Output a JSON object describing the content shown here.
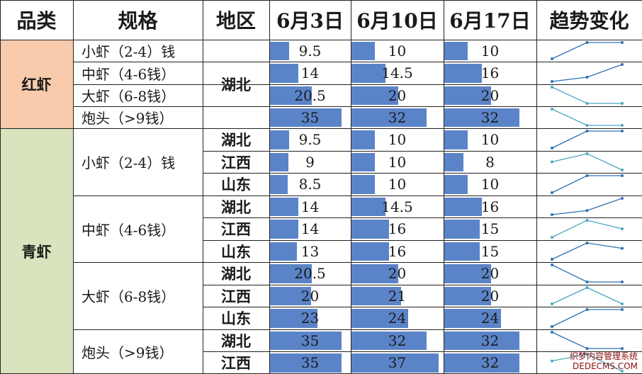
{
  "headers": {
    "category": "品类",
    "spec": "规格",
    "region": "地区",
    "date1": "6月3日",
    "date2": "6月10日",
    "date3": "6月17日",
    "trend": "趋势变化"
  },
  "colors": {
    "bar": "#5b84c8",
    "red_category": "#f8cbad",
    "green_category": "#d9e4bf",
    "spark_dark": "#2f6fb3",
    "spark_teal": "#4aa8c0"
  },
  "bar_max_value": 37,
  "rows": [
    {
      "category": "红虾",
      "spec": "小虾（2-4）钱",
      "region": "湖北",
      "values": [
        "9.5",
        "10",
        "10"
      ],
      "trend_icon": "sparkline"
    },
    {
      "category": "红虾",
      "spec": "中虾（4-6钱）",
      "region": "湖北",
      "values": [
        "14",
        "14.5",
        "16"
      ],
      "trend_icon": "sparkline"
    },
    {
      "category": "红虾",
      "spec": "大虾（6-8钱）",
      "region": "湖北",
      "values": [
        "20.5",
        "20",
        "20"
      ],
      "trend_icon": "sparkline"
    },
    {
      "category": "红虾",
      "spec": "炮头（>9钱）",
      "region": "湖北",
      "values": [
        "35",
        "32",
        "32"
      ],
      "trend_icon": "sparkline"
    },
    {
      "category": "青虾",
      "spec": "小虾（2-4）钱",
      "region": "湖北",
      "values": [
        "9.5",
        "10",
        "10"
      ],
      "trend_icon": "sparkline"
    },
    {
      "category": "青虾",
      "spec": "小虾（2-4）钱",
      "region": "江西",
      "values": [
        "9",
        "10",
        "8"
      ],
      "trend_icon": "sparkline"
    },
    {
      "category": "青虾",
      "spec": "小虾（2-4）钱",
      "region": "山东",
      "values": [
        "8.5",
        "10",
        "10"
      ],
      "trend_icon": "sparkline"
    },
    {
      "category": "青虾",
      "spec": "中虾（4-6钱）",
      "region": "湖北",
      "values": [
        "14",
        "14.5",
        "16"
      ],
      "trend_icon": "sparkline"
    },
    {
      "category": "青虾",
      "spec": "中虾（4-6钱）",
      "region": "江西",
      "values": [
        "14",
        "16",
        "15"
      ],
      "trend_icon": "sparkline"
    },
    {
      "category": "青虾",
      "spec": "中虾（4-6钱）",
      "region": "山东",
      "values": [
        "13",
        "16",
        "15"
      ],
      "trend_icon": "sparkline"
    },
    {
      "category": "青虾",
      "spec": "大虾（6-8钱）",
      "region": "湖北",
      "values": [
        "20.5",
        "20",
        "20"
      ],
      "trend_icon": "sparkline"
    },
    {
      "category": "青虾",
      "spec": "大虾（6-8钱）",
      "region": "江西",
      "values": [
        "20",
        "21",
        "20"
      ],
      "trend_icon": "sparkline"
    },
    {
      "category": "青虾",
      "spec": "大虾（6-8钱）",
      "region": "山东",
      "values": [
        "23",
        "24",
        "24"
      ],
      "trend_icon": "sparkline"
    },
    {
      "category": "青虾",
      "spec": "炮头（>9钱）",
      "region": "湖北",
      "values": [
        "35",
        "32",
        "32"
      ],
      "trend_icon": "sparkline"
    },
    {
      "category": "青虾",
      "spec": "炮头（>9钱）",
      "region": "江西",
      "values": [
        "35",
        "37",
        "32"
      ],
      "trend_icon": "sparkline"
    }
  ],
  "watermark": {
    "line1": "织梦内容管理系统",
    "line2": "DEDECMS.COM"
  }
}
